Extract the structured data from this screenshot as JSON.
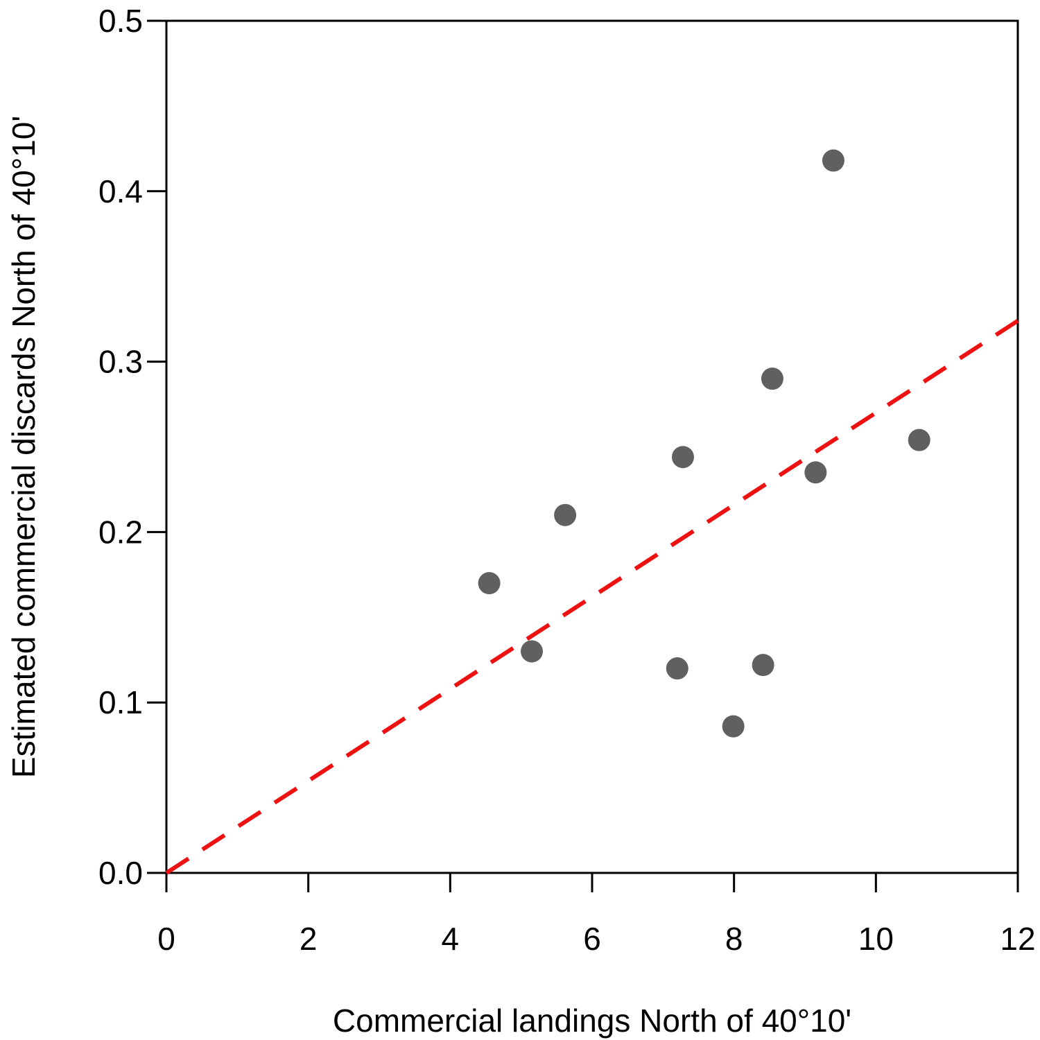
{
  "chart_data": {
    "type": "scatter",
    "xlabel": "Commercial landings North of 40°10'",
    "ylabel": "Estimated commercial discards North of 40°10'",
    "xlim": [
      0,
      12
    ],
    "ylim": [
      0,
      0.5
    ],
    "x_ticks": [
      "0",
      "2",
      "4",
      "6",
      "8",
      "10",
      "12"
    ],
    "y_ticks": [
      "0.0",
      "0.1",
      "0.2",
      "0.3",
      "0.4",
      "0.5"
    ],
    "grid": false,
    "series": [
      {
        "points": [
          {
            "x": 4.55,
            "y": 0.17
          },
          {
            "x": 5.15,
            "y": 0.13
          },
          {
            "x": 5.62,
            "y": 0.21
          },
          {
            "x": 7.2,
            "y": 0.12
          },
          {
            "x": 7.28,
            "y": 0.244
          },
          {
            "x": 7.99,
            "y": 0.086
          },
          {
            "x": 8.41,
            "y": 0.122
          },
          {
            "x": 8.54,
            "y": 0.29
          },
          {
            "x": 9.15,
            "y": 0.235
          },
          {
            "x": 9.4,
            "y": 0.418
          },
          {
            "x": 10.61,
            "y": 0.254
          }
        ],
        "color": "#606060"
      }
    ],
    "reference_line": {
      "style": "dashed",
      "color": "#ee1111",
      "x": [
        0,
        12
      ],
      "y": [
        0,
        0.324
      ]
    }
  }
}
